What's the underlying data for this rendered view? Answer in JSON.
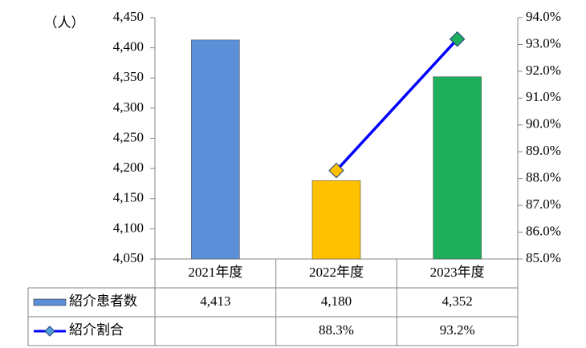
{
  "chart_data": {
    "type": "bar",
    "y_label": "（人）",
    "categories": [
      "2021年度",
      "2022年度",
      "2023年度"
    ],
    "series": [
      {
        "name": "紹介患者数",
        "type": "bar",
        "color": "#5b8fd8",
        "colors": [
          "#5b8fd8",
          "#ffc000",
          "#1fae5b"
        ],
        "values": [
          4413,
          4180,
          4352
        ],
        "value_labels": [
          "4,413",
          "4,180",
          "4,352"
        ]
      },
      {
        "name": "紹介割合",
        "type": "line",
        "axis": "y2",
        "color": "#0000ff",
        "marker_colors": [
          "#ffc000",
          "#ffc000",
          "#1fae5b"
        ],
        "values": [
          null,
          88.3,
          93.2
        ],
        "value_labels": [
          null,
          "88.3%",
          "93.2%"
        ]
      }
    ],
    "ylim": [
      4050,
      4450
    ],
    "yticks": [
      {
        "value": 4050,
        "label": "4,050"
      },
      {
        "value": 4100,
        "label": "4,100"
      },
      {
        "value": 4150,
        "label": "4,150"
      },
      {
        "value": 4200,
        "label": "4,200"
      },
      {
        "value": 4250,
        "label": "4,250"
      },
      {
        "value": 4300,
        "label": "4,300"
      },
      {
        "value": 4350,
        "label": "4,350"
      },
      {
        "value": 4400,
        "label": "4,400"
      },
      {
        "value": 4450,
        "label": "4,450"
      }
    ],
    "y2lim": [
      85,
      94
    ],
    "y2ticks": [
      {
        "value": 85,
        "label": "85.0%"
      },
      {
        "value": 86,
        "label": "86.0%"
      },
      {
        "value": 87,
        "label": "87.0%"
      },
      {
        "value": 88,
        "label": "88.0%"
      },
      {
        "value": 89,
        "label": "89.0%"
      },
      {
        "value": 90,
        "label": "90.0%"
      },
      {
        "value": 91,
        "label": "91.0%"
      },
      {
        "value": 92,
        "label": "92.0%"
      },
      {
        "value": 93,
        "label": "93.0%"
      },
      {
        "value": 94,
        "label": "94.0%"
      }
    ]
  }
}
